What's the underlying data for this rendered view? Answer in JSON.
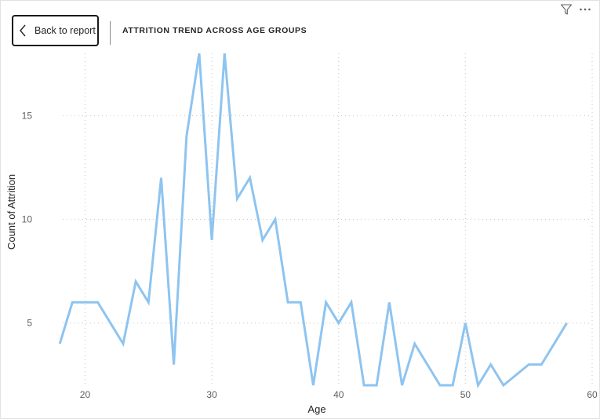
{
  "header": {
    "back_label": "Back to report",
    "title": "ATTRITION TREND ACROSS AGE GROUPS"
  },
  "icons": {
    "back": "chevron-left-icon",
    "filter": "filter-icon",
    "more": "more-options-icon"
  },
  "colors": {
    "line": "#8ec4f0",
    "grid": "#c8c6c4",
    "text": "#252423",
    "tick": "#605e5c"
  },
  "chart_data": {
    "type": "line",
    "title": "ATTRITION TREND ACROSS AGE GROUPS",
    "xlabel": "Age",
    "ylabel": "Count of Attrition",
    "xlim": [
      17,
      60
    ],
    "ylim": [
      2,
      18
    ],
    "x_ticks": [
      20,
      30,
      40,
      50,
      60
    ],
    "y_ticks": [
      5,
      10,
      15
    ],
    "grid": true,
    "legend": "none",
    "series": [
      {
        "x": [
          18,
          19,
          20,
          21,
          22,
          23,
          24,
          25,
          26,
          27,
          28,
          29,
          30,
          31,
          32,
          33,
          34,
          35,
          36,
          37,
          38,
          39,
          40,
          41,
          42,
          43,
          44,
          45,
          46,
          47,
          48,
          49,
          50,
          51,
          52,
          53,
          55,
          56,
          58
        ],
        "y": [
          4,
          6,
          6,
          6,
          5,
          4,
          7,
          6,
          12,
          3,
          14,
          18,
          9,
          18,
          11,
          12,
          9,
          10,
          6,
          6,
          2,
          6,
          5,
          6,
          2,
          2,
          6,
          2,
          4,
          3,
          2,
          2,
          5,
          2,
          3,
          2,
          3,
          3,
          5
        ]
      }
    ]
  }
}
